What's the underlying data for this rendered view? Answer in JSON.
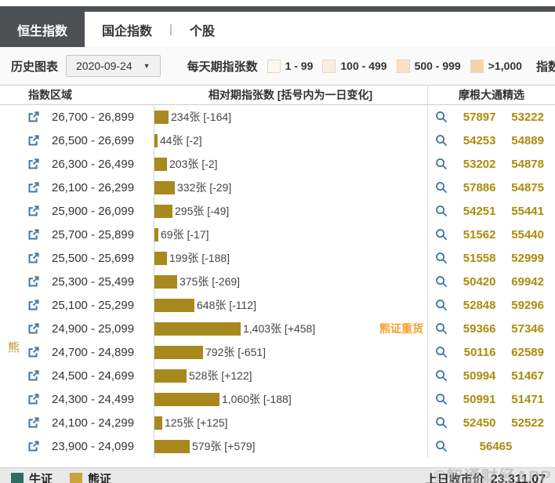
{
  "tabs": {
    "items": [
      "恒生指数",
      "国企指数",
      "个股"
    ],
    "separator": "|",
    "active": "恒生指数"
  },
  "toolbar": {
    "history_label": "历史图表",
    "date_value": "2020-09-24",
    "daily_label": "每天期指张数",
    "legend": [
      {
        "label": "1 - 99",
        "color": "#fdf8ef"
      },
      {
        "label": "100 - 499",
        "color": "#fbeedd"
      },
      {
        "label": "500 - 999",
        "color": "#f9e2c4"
      },
      {
        "label": ">1,000",
        "color": "#f5d3a6"
      }
    ],
    "index_link": "指数"
  },
  "table": {
    "headers": {
      "range": "指数区域",
      "bars": "相对期指张数 [括号内为一日变化]",
      "selection": "摩根大通精选"
    }
  },
  "rows": [
    {
      "range": "26,700 - 26,899",
      "value": 234,
      "label": "234张 [-164]",
      "codes": [
        "57897",
        "53222"
      ]
    },
    {
      "range": "26,500 - 26,699",
      "value": 44,
      "label": "44张 [-2]",
      "codes": [
        "54253",
        "54889"
      ]
    },
    {
      "range": "26,300 - 26,499",
      "value": 203,
      "label": "203张 [-2]",
      "codes": [
        "53202",
        "54878"
      ]
    },
    {
      "range": "26,100 - 26,299",
      "value": 332,
      "label": "332张 [-29]",
      "codes": [
        "57886",
        "54875"
      ]
    },
    {
      "range": "25,900 - 26,099",
      "value": 295,
      "label": "295张 [-49]",
      "codes": [
        "54251",
        "55441"
      ]
    },
    {
      "range": "25,700 - 25,899",
      "value": 69,
      "label": "69张 [-17]",
      "codes": [
        "51562",
        "55440"
      ]
    },
    {
      "range": "25,500 - 25,699",
      "value": 199,
      "label": "199张 [-188]",
      "codes": [
        "51558",
        "52999"
      ]
    },
    {
      "range": "25,300 - 25,499",
      "value": 375,
      "label": "375张 [-269]",
      "codes": [
        "50420",
        "69942"
      ]
    },
    {
      "range": "25,100 - 25,299",
      "value": 648,
      "label": "648张 [-112]",
      "codes": [
        "52848",
        "59296"
      ]
    },
    {
      "range": "24,900 - 25,099",
      "value": 1403,
      "label": "1,403张 [+458]",
      "codes": [
        "59366",
        "57346"
      ],
      "tag": "熊证重货"
    },
    {
      "range": "24,700 - 24,899",
      "value": 792,
      "label": "792张 [-651]",
      "codes": [
        "50116",
        "62589"
      ]
    },
    {
      "range": "24,500 - 24,699",
      "value": 528,
      "label": "528张 [+122]",
      "codes": [
        "50994",
        "51467"
      ]
    },
    {
      "range": "24,300 - 24,499",
      "value": 1060,
      "label": "1,060张 [-188]",
      "codes": [
        "50991",
        "51471"
      ]
    },
    {
      "range": "24,100 - 24,299",
      "value": 125,
      "label": "125张 [+125]",
      "codes": [
        "52450",
        "52522"
      ]
    },
    {
      "range": "23,900 - 24,099",
      "value": 579,
      "label": "579张 [+579]",
      "codes": [
        "56465"
      ]
    }
  ],
  "side_label": "熊",
  "footer": {
    "bull_label": "牛证",
    "bear_label": "熊证",
    "bull_color": "#2c6e62",
    "bear_color": "#c9a43c",
    "close_label": "上日收市价",
    "close_value": "23,311.07",
    "watermark": "©智通财经APP"
  },
  "colors": {
    "bar": "#a8891e",
    "code_text": "#aa8c0e",
    "active_tab_bg": "#4d5154",
    "tag_text": "#f5a028",
    "link_icon": "#4677a4",
    "search_icon": "#3d6f9e"
  }
}
